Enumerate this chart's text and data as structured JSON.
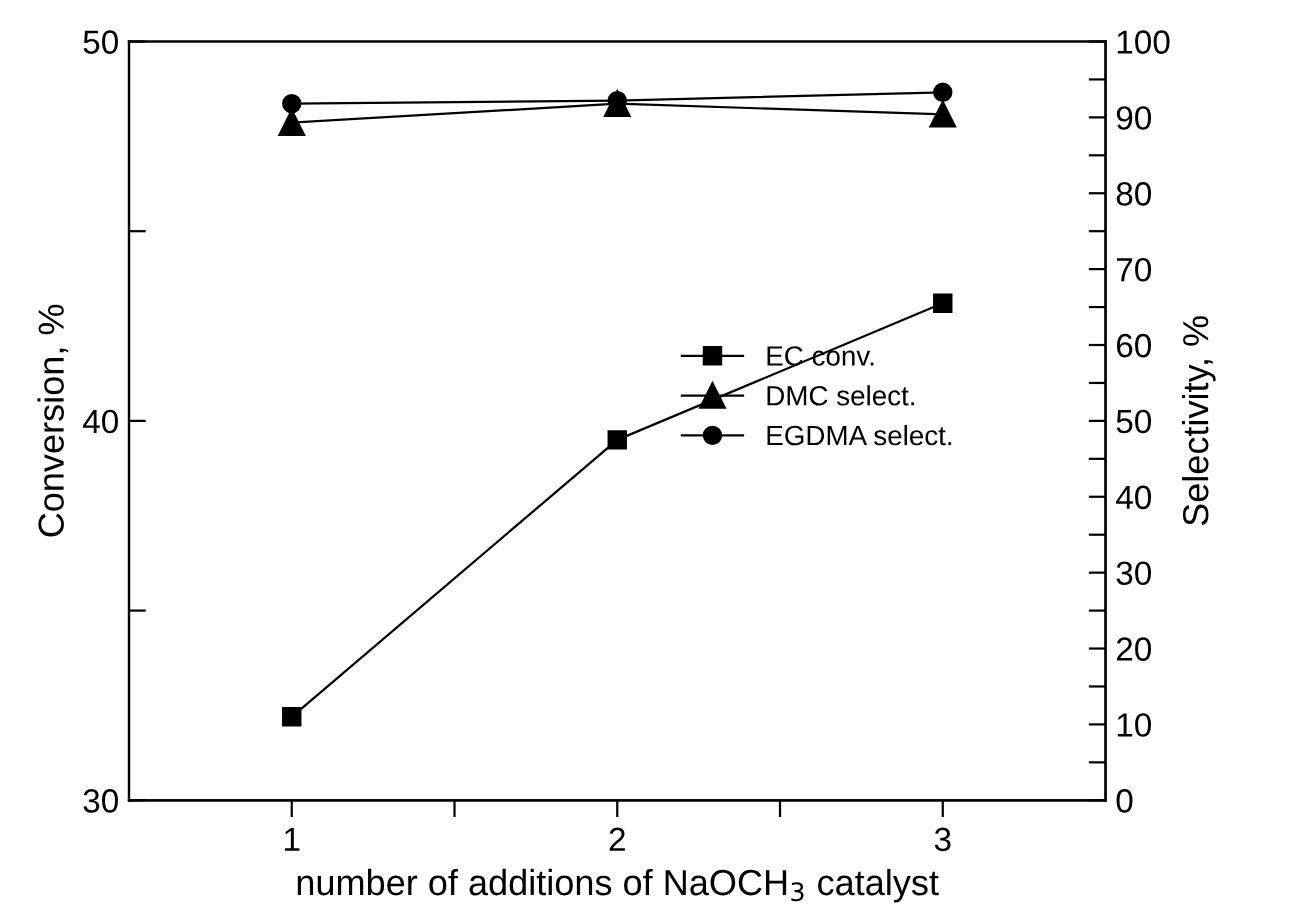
{
  "chart_data": {
    "type": "line",
    "xlabel": "number of additions of NaOCH$_{3}$ catalyst",
    "ylabel": "Conversion, %",
    "y2label": "Selectivity, %",
    "x": [
      1,
      2,
      3
    ],
    "series": [
      {
        "name": "EC conv.",
        "color": "#000000",
        "values": [
          32.2,
          39.5,
          43.1
        ],
        "marker": "square"
      },
      {
        "name": "DMC select.",
        "color": "#000000",
        "values": [
          89.3,
          91.8,
          90.4
        ],
        "marker": "triangle",
        "axis": "y2"
      },
      {
        "name": "EGDMA select.",
        "color": "#000000",
        "values": [
          91.8,
          92.2,
          93.3
        ],
        "marker": "circle",
        "axis": "y2"
      }
    ],
    "xlim": [
      0.5,
      3.5
    ],
    "xticks": [
      1,
      {
        "value": 1.5,
        "label": null
      },
      2,
      {
        "value": 2.5,
        "label": null
      },
      3
    ],
    "ylim": [
      30,
      50
    ],
    "yticks": [
      30,
      {
        "value": 35,
        "label": null
      },
      40,
      {
        "value": 45,
        "label": null
      },
      50
    ],
    "y2lim": [
      0,
      100
    ],
    "y2ticks": [
      0,
      {
        "value": 5,
        "label": null
      },
      10,
      {
        "value": 15,
        "label": null
      },
      20,
      {
        "value": 25,
        "label": null
      },
      30,
      {
        "value": 35,
        "label": null
      },
      40,
      {
        "value": 45,
        "label": null
      },
      50,
      {
        "value": 55,
        "label": null
      },
      60,
      {
        "value": 65,
        "label": null
      },
      70,
      {
        "value": 75,
        "label": null
      },
      80,
      {
        "value": 85,
        "label": null
      },
      90,
      {
        "value": 95,
        "label": null
      },
      100
    ],
    "legend": "right",
    "grid": false,
    "line_style": "solid"
  }
}
